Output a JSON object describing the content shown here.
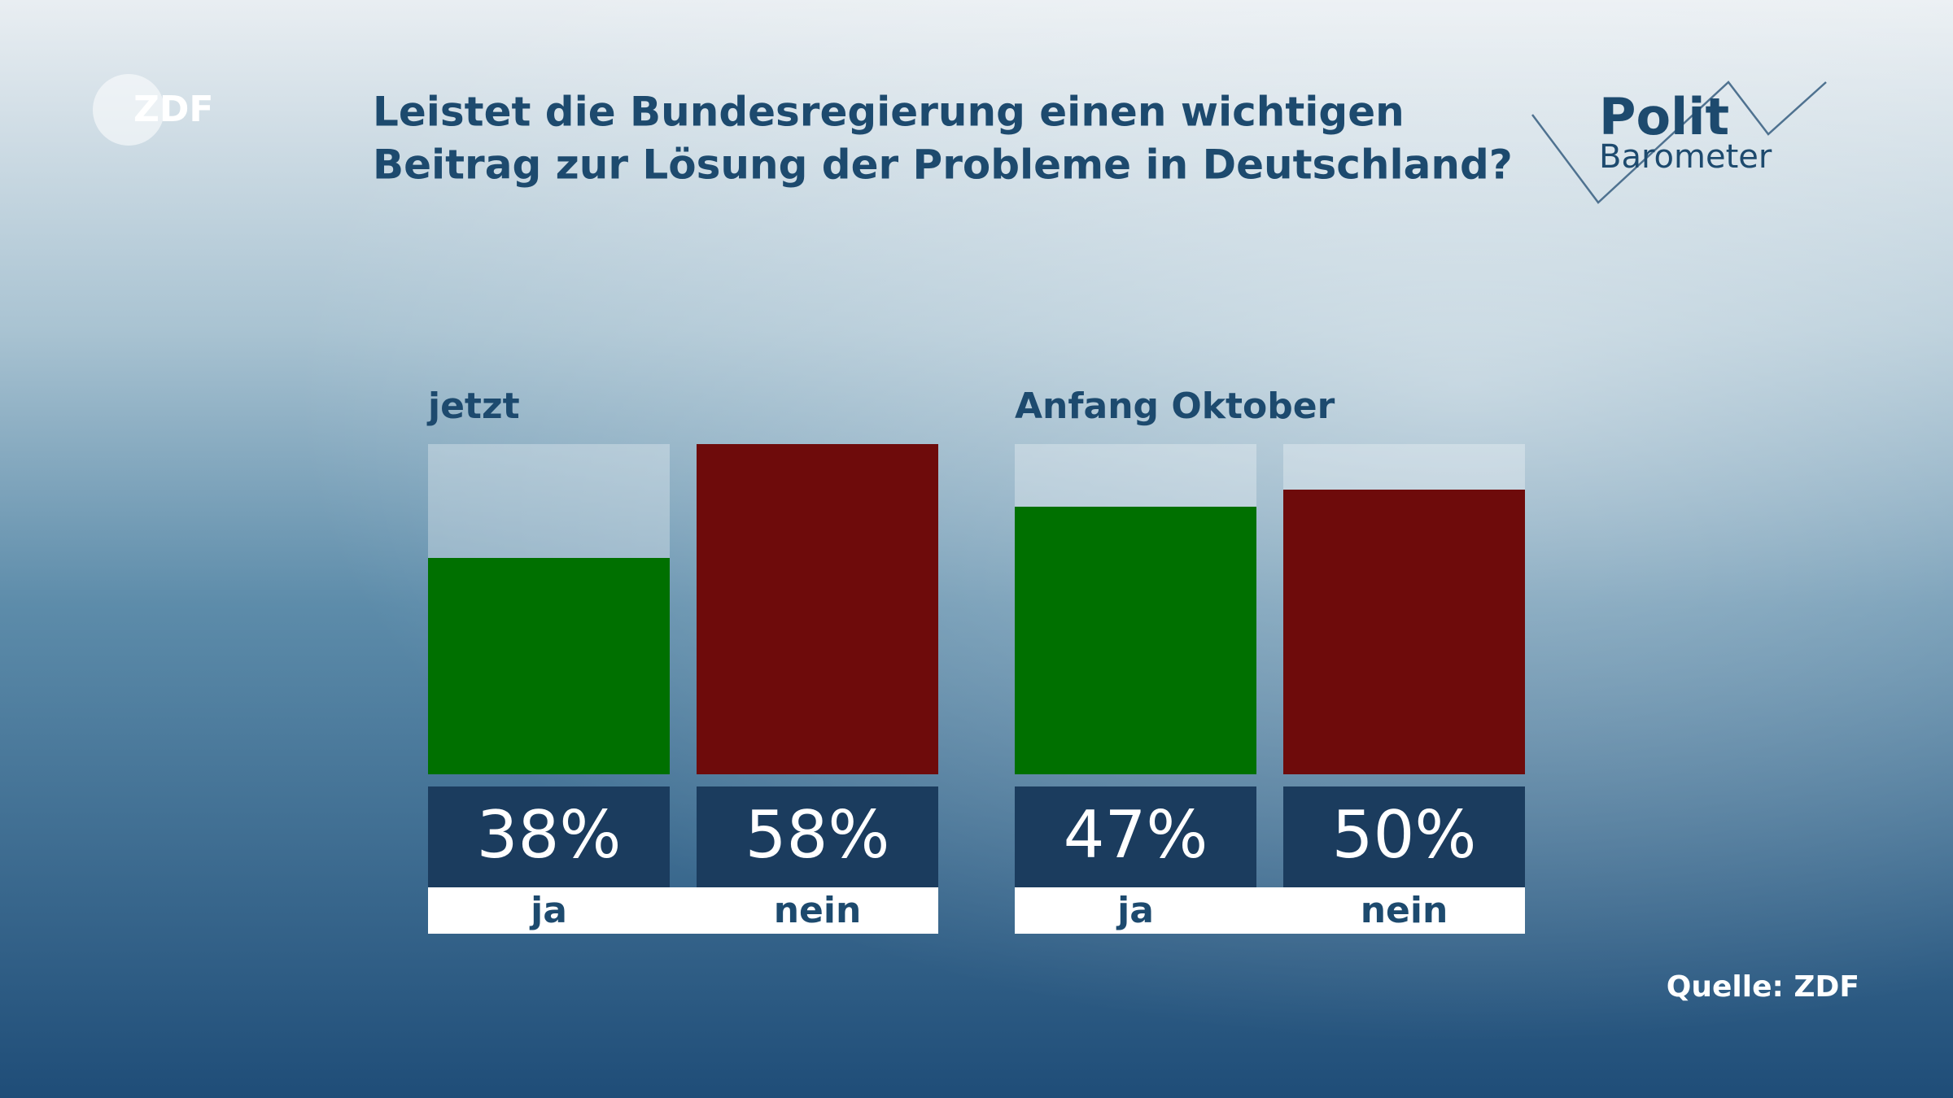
{
  "chart_data": {
    "type": "grouped-bar",
    "title": [
      "Leistet die Bundesregierung einen wichtigen",
      "Beitrag zur Lösung der Probleme in Deutschland?"
    ],
    "groups": [
      {
        "name": "jetzt",
        "categories": [
          "ja",
          "nein"
        ],
        "values": [
          38,
          58
        ],
        "value_labels": [
          "38%",
          "58%"
        ]
      },
      {
        "name": "Anfang Oktober",
        "categories": [
          "ja",
          "nein"
        ],
        "values": [
          47,
          50
        ],
        "value_labels": [
          "47%",
          "50%"
        ]
      }
    ],
    "colors": [
      "#007000",
      "#6e0b0b"
    ],
    "ylim": [
      0,
      58
    ],
    "source": "Quelle: ZDF"
  },
  "branding": {
    "broadcaster": "ZDF",
    "show": [
      "Polit",
      "Barometer"
    ]
  }
}
